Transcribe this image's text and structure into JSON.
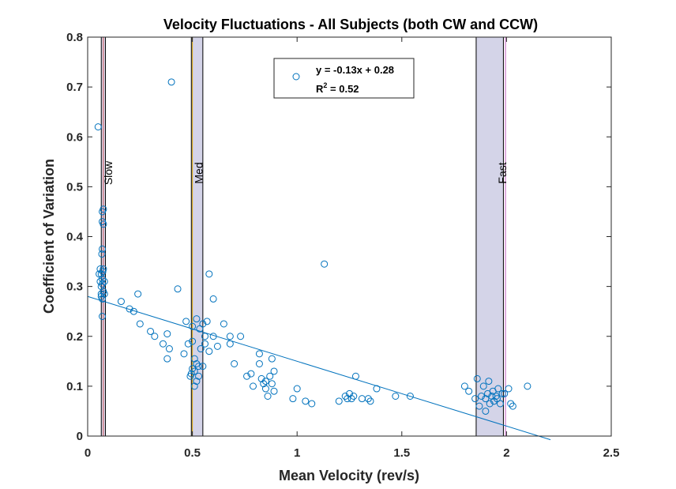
{
  "chart_data": {
    "type": "scatter",
    "title": "Velocity Fluctuations - All Subjects (both CW and CCW)",
    "xlabel": "Mean Velocity (rev/s)",
    "ylabel": "Coefficient of Variation",
    "xlim": [
      0,
      2.5
    ],
    "ylim": [
      0,
      0.8
    ],
    "xticks": [
      0,
      0.5,
      1,
      1.5,
      2,
      2.5
    ],
    "xtick_labels": [
      "0",
      "0.5",
      "1",
      "1.5",
      "2",
      "2.5"
    ],
    "yticks": [
      0,
      0.1,
      0.2,
      0.3,
      0.4,
      0.5,
      0.6,
      0.7,
      0.8
    ],
    "ytick_labels": [
      "0",
      "0.1",
      "0.2",
      "0.3",
      "0.4",
      "0.5",
      "0.6",
      "0.7",
      "0.8"
    ],
    "grid": false,
    "legend": {
      "placement": "top-center",
      "equation": "y = -0.13x + 0.28",
      "r2_prefix": "R",
      "r2_exp": "2",
      "r2_suffix": " = 0.52"
    },
    "fit_line": {
      "slope": -0.13,
      "intercept": 0.28,
      "x_range": [
        0,
        2.21
      ]
    },
    "bands": [
      {
        "label": "Slow",
        "x0": 0.065,
        "x1": 0.085,
        "ref_line": 0.075
      },
      {
        "label": "Med",
        "x0": 0.495,
        "x1": 0.55,
        "ref_line": 0.5
      },
      {
        "label": "Fast",
        "x0": 1.855,
        "x1": 1.985,
        "ref_line": 1.995
      }
    ],
    "colors": {
      "points": "#0072BD",
      "fit": "#0072BD",
      "band_fill": "#d4d4e8",
      "band_edge": "#000000",
      "slow_ref": "#d45a5a",
      "med_ref": "#d4a000",
      "fast_ref": "#c060c0"
    },
    "points": [
      [
        0.05,
        0.62
      ],
      [
        0.4,
        0.71
      ],
      [
        1.13,
        0.345
      ],
      [
        0.075,
        0.455
      ],
      [
        0.07,
        0.45
      ],
      [
        0.075,
        0.425
      ],
      [
        0.07,
        0.43
      ],
      [
        0.07,
        0.375
      ],
      [
        0.068,
        0.365
      ],
      [
        0.075,
        0.335
      ],
      [
        0.06,
        0.335
      ],
      [
        0.072,
        0.33
      ],
      [
        0.065,
        0.325
      ],
      [
        0.055,
        0.325
      ],
      [
        0.07,
        0.315
      ],
      [
        0.08,
        0.31
      ],
      [
        0.07,
        0.305
      ],
      [
        0.06,
        0.31
      ],
      [
        0.065,
        0.3
      ],
      [
        0.075,
        0.29
      ],
      [
        0.065,
        0.285
      ],
      [
        0.08,
        0.285
      ],
      [
        0.065,
        0.28
      ],
      [
        0.07,
        0.275
      ],
      [
        0.07,
        0.24
      ],
      [
        0.16,
        0.27
      ],
      [
        0.2,
        0.255
      ],
      [
        0.22,
        0.25
      ],
      [
        0.24,
        0.285
      ],
      [
        0.25,
        0.225
      ],
      [
        0.32,
        0.2
      ],
      [
        0.36,
        0.185
      ],
      [
        0.38,
        0.205
      ],
      [
        0.39,
        0.175
      ],
      [
        0.38,
        0.155
      ],
      [
        0.3,
        0.21
      ],
      [
        0.43,
        0.295
      ],
      [
        0.46,
        0.165
      ],
      [
        0.47,
        0.23
      ],
      [
        0.5,
        0.22
      ],
      [
        0.52,
        0.235
      ],
      [
        0.535,
        0.215
      ],
      [
        0.55,
        0.225
      ],
      [
        0.56,
        0.2
      ],
      [
        0.57,
        0.23
      ],
      [
        0.58,
        0.17
      ],
      [
        0.6,
        0.2
      ],
      [
        0.62,
        0.18
      ],
      [
        0.58,
        0.325
      ],
      [
        0.6,
        0.275
      ],
      [
        0.65,
        0.225
      ],
      [
        0.5,
        0.19
      ],
      [
        0.51,
        0.155
      ],
      [
        0.52,
        0.145
      ],
      [
        0.53,
        0.14
      ],
      [
        0.5,
        0.135
      ],
      [
        0.51,
        0.13
      ],
      [
        0.53,
        0.12
      ],
      [
        0.495,
        0.125
      ],
      [
        0.52,
        0.11
      ],
      [
        0.51,
        0.1
      ],
      [
        0.55,
        0.14
      ],
      [
        0.54,
        0.175
      ],
      [
        0.56,
        0.185
      ],
      [
        0.48,
        0.185
      ],
      [
        0.49,
        0.12
      ],
      [
        0.68,
        0.2
      ],
      [
        0.68,
        0.185
      ],
      [
        0.7,
        0.145
      ],
      [
        0.73,
        0.2
      ],
      [
        0.76,
        0.12
      ],
      [
        0.78,
        0.125
      ],
      [
        0.79,
        0.1
      ],
      [
        0.82,
        0.165
      ],
      [
        0.82,
        0.145
      ],
      [
        0.83,
        0.115
      ],
      [
        0.84,
        0.105
      ],
      [
        0.85,
        0.095
      ],
      [
        0.86,
        0.08
      ],
      [
        0.87,
        0.12
      ],
      [
        0.88,
        0.105
      ],
      [
        0.88,
        0.155
      ],
      [
        0.89,
        0.13
      ],
      [
        0.89,
        0.09
      ],
      [
        0.85,
        0.11
      ],
      [
        1.0,
        0.095
      ],
      [
        0.98,
        0.075
      ],
      [
        1.04,
        0.07
      ],
      [
        1.07,
        0.065
      ],
      [
        1.2,
        0.07
      ],
      [
        1.23,
        0.08
      ],
      [
        1.24,
        0.075
      ],
      [
        1.25,
        0.085
      ],
      [
        1.26,
        0.075
      ],
      [
        1.27,
        0.08
      ],
      [
        1.28,
        0.12
      ],
      [
        1.31,
        0.075
      ],
      [
        1.34,
        0.075
      ],
      [
        1.35,
        0.07
      ],
      [
        1.38,
        0.095
      ],
      [
        1.47,
        0.08
      ],
      [
        1.54,
        0.08
      ],
      [
        1.8,
        0.1
      ],
      [
        1.82,
        0.09
      ],
      [
        1.85,
        0.075
      ],
      [
        1.86,
        0.115
      ],
      [
        1.87,
        0.06
      ],
      [
        1.88,
        0.08
      ],
      [
        1.89,
        0.1
      ],
      [
        1.9,
        0.075
      ],
      [
        1.9,
        0.05
      ],
      [
        1.91,
        0.085
      ],
      [
        1.915,
        0.11
      ],
      [
        1.92,
        0.065
      ],
      [
        1.93,
        0.08
      ],
      [
        1.935,
        0.09
      ],
      [
        1.94,
        0.07
      ],
      [
        1.95,
        0.08
      ],
      [
        1.955,
        0.075
      ],
      [
        1.96,
        0.095
      ],
      [
        1.97,
        0.065
      ],
      [
        1.98,
        0.085
      ],
      [
        1.99,
        0.085
      ],
      [
        2.01,
        0.095
      ],
      [
        2.02,
        0.065
      ],
      [
        2.03,
        0.06
      ],
      [
        2.1,
        0.1
      ]
    ]
  }
}
